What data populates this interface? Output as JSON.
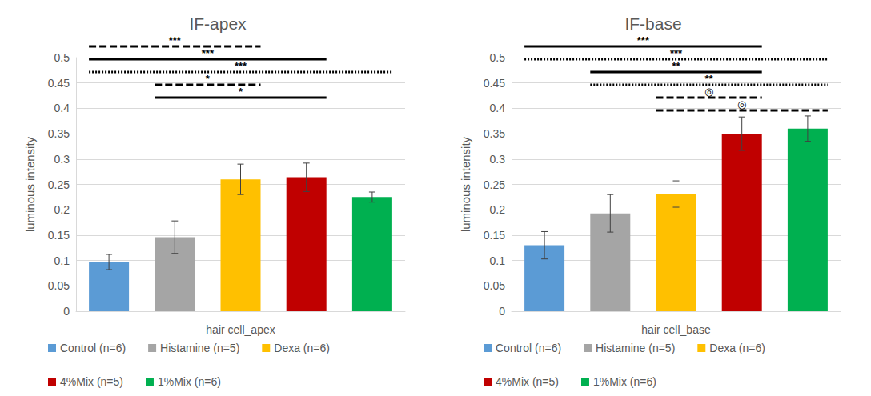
{
  "chart_data": [
    {
      "type": "bar",
      "title": "IF-apex",
      "categories": [
        "hair cell_apex"
      ],
      "y_label": "luminous intensity",
      "ylim": [
        0,
        0.5
      ],
      "yticks": [
        0,
        0.05,
        0.1,
        0.15,
        0.2,
        0.25,
        0.3,
        0.35,
        0.4,
        0.45,
        0.5
      ],
      "grid": true,
      "legend": "bottom",
      "series": [
        {
          "name": "Control (n=6)",
          "color": "#5b9bd5",
          "values": [
            0.097
          ],
          "error": [
            0.015
          ]
        },
        {
          "name": "Histamine (n=5)",
          "color": "#a5a5a5",
          "values": [
            0.146
          ],
          "error": [
            0.032
          ]
        },
        {
          "name": "Dexa (n=6)",
          "color": "#ffc000",
          "values": [
            0.26
          ],
          "error": [
            0.03
          ]
        },
        {
          "name": "4%Mix (n=5)",
          "color": "#c00000",
          "values": [
            0.264
          ],
          "error": [
            0.028
          ]
        },
        {
          "name": "1%Mix (n=6)",
          "color": "#00b050",
          "values": [
            0.225
          ],
          "error": [
            0.01
          ]
        }
      ],
      "annotations": [
        {
          "from": "Control (n=6)",
          "to": "Dexa (n=6)",
          "label": "***",
          "line_style": "dashed"
        },
        {
          "from": "Control (n=6)",
          "to": "4%Mix (n=5)",
          "label": "***",
          "line_style": "solid"
        },
        {
          "from": "Control (n=6)",
          "to": "1%Mix (n=6)",
          "label": "***",
          "line_style": "dotted"
        },
        {
          "from": "Histamine (n=5)",
          "to": "Dexa (n=6)",
          "label": "*",
          "line_style": "dashed"
        },
        {
          "from": "Histamine (n=5)",
          "to": "4%Mix (n=5)",
          "label": "*",
          "line_style": "solid"
        }
      ]
    },
    {
      "type": "bar",
      "title": "IF-base",
      "categories": [
        "hair cell_base"
      ],
      "y_label": "luminous intensity",
      "ylim": [
        0,
        0.5
      ],
      "yticks": [
        0,
        0.05,
        0.1,
        0.15,
        0.2,
        0.25,
        0.3,
        0.35,
        0.4,
        0.45,
        0.5
      ],
      "grid": true,
      "legend": "bottom",
      "series": [
        {
          "name": "Control (n=6)",
          "color": "#5b9bd5",
          "values": [
            0.13
          ],
          "error": [
            0.027
          ]
        },
        {
          "name": "Histamine (n=5)",
          "color": "#a5a5a5",
          "values": [
            0.193
          ],
          "error": [
            0.037
          ]
        },
        {
          "name": "Dexa (n=6)",
          "color": "#ffc000",
          "values": [
            0.231
          ],
          "error": [
            0.026
          ]
        },
        {
          "name": "4%Mix (n=5)",
          "color": "#c00000",
          "values": [
            0.35
          ],
          "error": [
            0.033
          ]
        },
        {
          "name": "1%Mix (n=6)",
          "color": "#00b050",
          "values": [
            0.36
          ],
          "error": [
            0.025
          ]
        }
      ],
      "annotations": [
        {
          "from": "Control (n=6)",
          "to": "4%Mix (n=5)",
          "label": "***",
          "line_style": "solid"
        },
        {
          "from": "Control (n=6)",
          "to": "1%Mix (n=6)",
          "label": "***",
          "line_style": "dotted"
        },
        {
          "from": "Histamine (n=5)",
          "to": "4%Mix (n=5)",
          "label": "**",
          "line_style": "solid"
        },
        {
          "from": "Histamine (n=5)",
          "to": "1%Mix (n=6)",
          "label": "**",
          "line_style": "dotted"
        },
        {
          "from": "Dexa (n=6)",
          "to": "4%Mix (n=5)",
          "label": "◎",
          "line_style": "dashed"
        },
        {
          "from": "Dexa (n=6)",
          "to": "1%Mix (n=6)",
          "label": "◎",
          "line_style": "dashed"
        }
      ]
    }
  ]
}
